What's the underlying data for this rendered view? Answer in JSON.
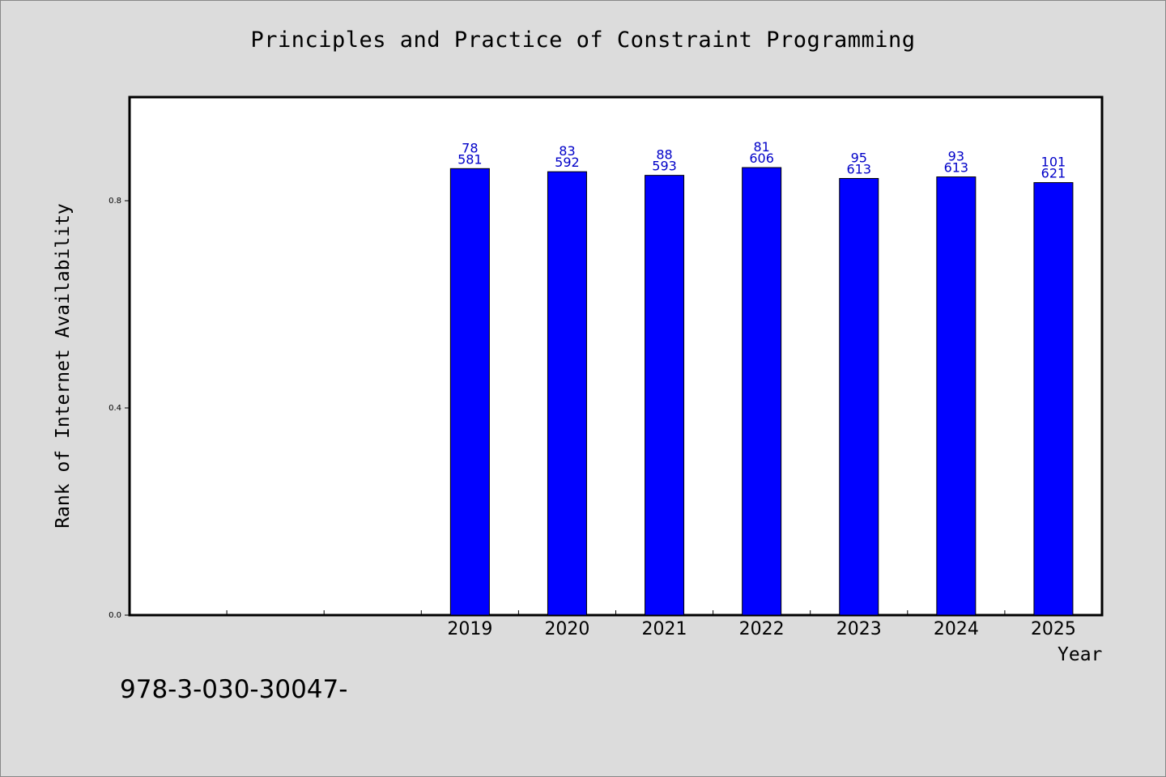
{
  "chart_data": {
    "type": "bar",
    "title": "Principles and Practice of Constraint Programming",
    "xlabel": "Year",
    "ylabel": "Rank of Internet Availability",
    "categories": [
      "",
      "",
      "",
      "2019",
      "2020",
      "2021",
      "2022",
      "2023",
      "2024",
      "2025"
    ],
    "series": [
      {
        "values": [
          null,
          null,
          null,
          0.862,
          0.856,
          0.849,
          0.864,
          0.843,
          0.846,
          0.835
        ],
        "labels_top": [
          "",
          "",
          "",
          "78",
          "83",
          "88",
          "81",
          "95",
          "93",
          "101"
        ],
        "labels_bottom": [
          "",
          "",
          "",
          "581",
          "592",
          "593",
          "606",
          "613",
          "613",
          "621"
        ],
        "color": "#0000ff"
      }
    ],
    "ylim": [
      0,
      1.0
    ],
    "yticks": [
      "0.0",
      "0.4",
      "0.8"
    ],
    "ytick_values": [
      0.0,
      0.4,
      0.8
    ],
    "grid": false,
    "legend": "none",
    "colors": {
      "bar": "#0000ff",
      "bar_stroke": "#000000",
      "data_label": "#0000c8",
      "plot_bg": "#ffffff",
      "figure_bg": "#dcdcdc"
    }
  },
  "note": "978-3-030-30047-"
}
